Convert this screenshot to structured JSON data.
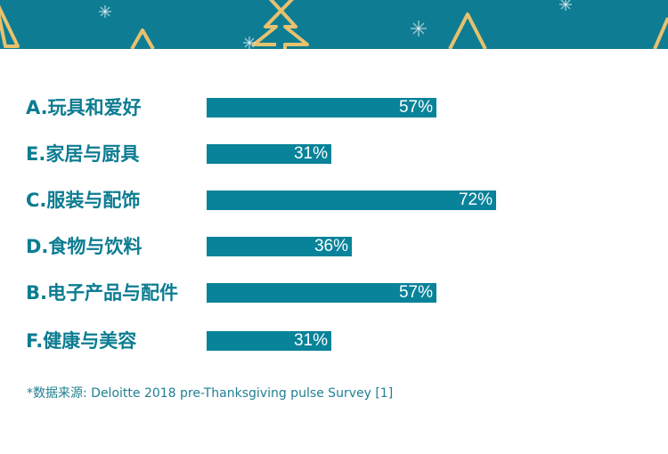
{
  "colors": {
    "banner": "#0e7d93",
    "bar": "#08839a",
    "label": "#0c7c91",
    "bar_value_text": "#ffffff",
    "ornament_gold": "#e8c16e"
  },
  "banner": {
    "decorations": [
      "christmas-tree-icon",
      "snowflake-icon"
    ]
  },
  "chart_data": {
    "type": "bar",
    "orientation": "horizontal",
    "categories": [
      "A.玩具和爱好",
      "E.家居与厨具",
      "C.服装与配饰",
      "D.食物与饮料",
      "B.电子产品与配件",
      "F.健康与美容"
    ],
    "values": [
      57,
      31,
      72,
      36,
      57,
      31
    ],
    "value_labels": [
      "57%",
      "31%",
      "72%",
      "36%",
      "57%",
      "31%"
    ],
    "unit": "%",
    "xlim": [
      0,
      100
    ],
    "grid": false,
    "legend": "none"
  },
  "footer": {
    "source": "*数据来源: Deloitte 2018 pre-Thanksgiving pulse Survey [1]"
  }
}
